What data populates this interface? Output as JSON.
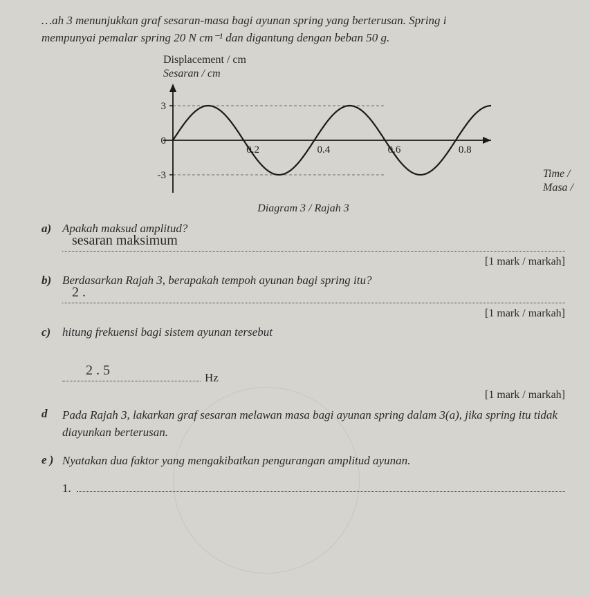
{
  "intro_line1": "…ah 3 menunjukkan graf sesaran-masa bagi ayunan spring yang berterusan. Spring i",
  "intro_line2": "mempunyai pemalar spring 20 N cm⁻¹ dan digantung dengan beban 50 g.",
  "chart": {
    "y_title_en": "Displacement / cm",
    "y_title_ms": "Sesaran / cm",
    "x_title_en": "Time /",
    "x_title_ms": "Masa /",
    "caption": "Diagram 3 / Rajah 3",
    "x_ticks": [
      "0.2",
      "0.4",
      "0.6",
      "0.8"
    ],
    "y_ticks_pos": "3",
    "y_ticks_neg": "-3",
    "y_zero": "0",
    "period": 0.4,
    "amplitude": 3,
    "ylim": [
      -3,
      3
    ],
    "xlim": [
      0,
      0.9
    ],
    "axis_color": "#1a1a1a",
    "curve_color": "#1a1a1a",
    "curve_width": 2.2,
    "tick_fontsize": 15,
    "background": "#d5d4cf"
  },
  "q_a": {
    "label": "a)",
    "text": "Apakah maksud amplitud?",
    "answer": "sesaran   maksimum"
  },
  "q_b": {
    "label": "b)",
    "text": "Berdasarkan Rajah 3, berapakah tempoh ayunan bagi spring itu?",
    "answer": "2 ."
  },
  "q_c": {
    "label": "c)",
    "text": "hitung frekuensi bagi sistem ayunan tersebut",
    "answer": "2 . 5",
    "unit": "Hz"
  },
  "q_d": {
    "label": "d",
    "text": "Pada Rajah 3, lakarkan graf sesaran melawan masa bagi ayunan spring dalam 3(a), jika spring itu tidak diayunkan berterusan."
  },
  "q_e": {
    "label": "e )",
    "text": "Nyatakan dua faktor yang mengakibatkan pengurangan amplitud ayunan.",
    "list_start": "1."
  },
  "mark_text": "[1 mark / markah]"
}
